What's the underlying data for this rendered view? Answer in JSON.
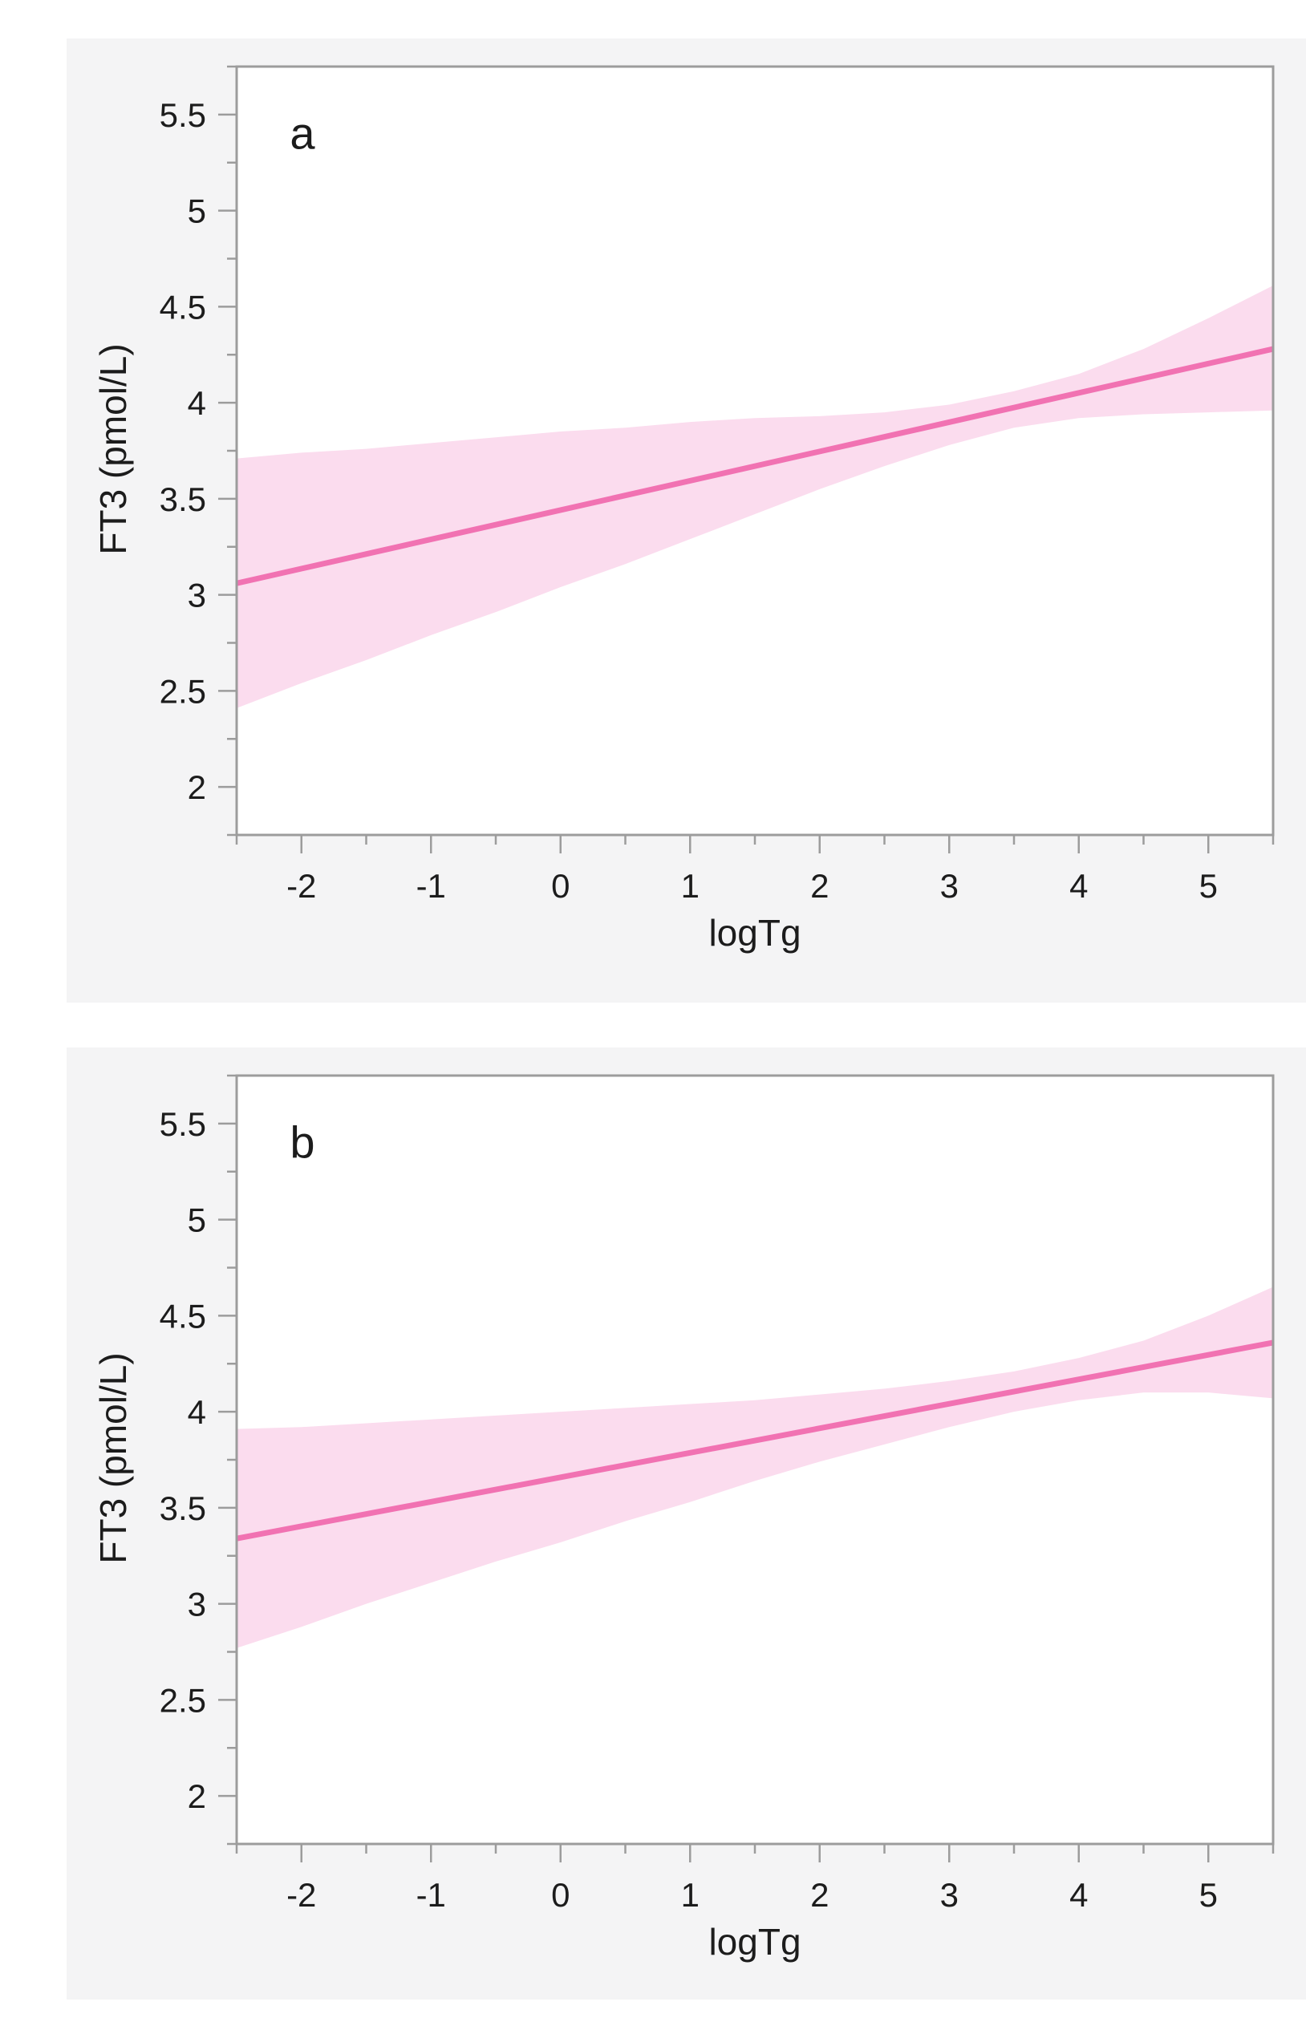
{
  "theme": {
    "page_bg": "#ffffff",
    "panel_bg": "#f4f4f5",
    "plot_bg": "#ffffff",
    "axis_color": "#9c9c9c",
    "text_color": "#1c1c1c",
    "tick_font_size": 42
  },
  "chart_data": [
    {
      "type": "line",
      "panel_letter": "a",
      "xlabel": "logTg",
      "ylabel": "FT3 (pmol/L)",
      "xlim": [
        -2.5,
        5.5
      ],
      "ylim": [
        1.75,
        5.75
      ],
      "x_major_ticks": [
        -2,
        -1,
        0,
        1,
        2,
        3,
        4,
        5
      ],
      "x_minor_ticks": [
        -2.5,
        -1.5,
        -0.5,
        0.5,
        1.5,
        2.5,
        3.5,
        4.5,
        5.5
      ],
      "y_major_ticks": [
        2,
        2.5,
        3,
        3.5,
        4,
        4.5,
        5,
        5.5
      ],
      "y_minor_ticks": [
        1.75,
        2.25,
        2.75,
        3.25,
        3.75,
        4.25,
        4.75,
        5.25,
        5.75
      ],
      "grid": false,
      "legend": "none",
      "series": [
        {
          "name": "confidence-band",
          "kind": "band",
          "color": "#fbdcee",
          "points": [
            [
              -2.5,
              3.71,
              2.41
            ],
            [
              -2.0,
              3.74,
              2.54
            ],
            [
              -1.5,
              3.76,
              2.66
            ],
            [
              -1.0,
              3.79,
              2.79
            ],
            [
              -0.5,
              3.82,
              2.91
            ],
            [
              0.0,
              3.85,
              3.04
            ],
            [
              0.5,
              3.87,
              3.16
            ],
            [
              1.0,
              3.9,
              3.29
            ],
            [
              1.5,
              3.92,
              3.42
            ],
            [
              2.0,
              3.93,
              3.55
            ],
            [
              2.5,
              3.95,
              3.67
            ],
            [
              3.0,
              3.99,
              3.78
            ],
            [
              3.5,
              4.06,
              3.87
            ],
            [
              4.0,
              4.15,
              3.92
            ],
            [
              4.5,
              4.28,
              3.94
            ],
            [
              5.0,
              4.44,
              3.95
            ],
            [
              5.5,
              4.61,
              3.96
            ]
          ]
        },
        {
          "name": "fit-line",
          "kind": "line",
          "color": "#f172b2",
          "width": 7,
          "points": [
            [
              -2.5,
              3.06
            ],
            [
              5.5,
              4.28
            ]
          ]
        }
      ]
    },
    {
      "type": "line",
      "panel_letter": "b",
      "xlabel": "logTg",
      "ylabel": "FT3 (pmol/L)",
      "xlim": [
        -2.5,
        5.5
      ],
      "ylim": [
        1.75,
        5.75
      ],
      "x_major_ticks": [
        -2,
        -1,
        0,
        1,
        2,
        3,
        4,
        5
      ],
      "x_minor_ticks": [
        -2.5,
        -1.5,
        -0.5,
        0.5,
        1.5,
        2.5,
        3.5,
        4.5,
        5.5
      ],
      "y_major_ticks": [
        2,
        2.5,
        3,
        3.5,
        4,
        4.5,
        5,
        5.5
      ],
      "y_minor_ticks": [
        1.75,
        2.25,
        2.75,
        3.25,
        3.75,
        4.25,
        4.75,
        5.25,
        5.75
      ],
      "grid": false,
      "legend": "none",
      "series": [
        {
          "name": "confidence-band",
          "kind": "band",
          "color": "#fbdcee",
          "points": [
            [
              -2.5,
              3.91,
              2.77
            ],
            [
              -2.0,
              3.92,
              2.88
            ],
            [
              -1.5,
              3.94,
              3.0
            ],
            [
              -1.0,
              3.96,
              3.11
            ],
            [
              -0.5,
              3.98,
              3.22
            ],
            [
              0.0,
              4.0,
              3.32
            ],
            [
              0.5,
              4.02,
              3.43
            ],
            [
              1.0,
              4.04,
              3.53
            ],
            [
              1.5,
              4.06,
              3.64
            ],
            [
              2.0,
              4.09,
              3.74
            ],
            [
              2.5,
              4.12,
              3.83
            ],
            [
              3.0,
              4.16,
              3.92
            ],
            [
              3.5,
              4.21,
              4.0
            ],
            [
              4.0,
              4.28,
              4.06
            ],
            [
              4.5,
              4.37,
              4.1
            ],
            [
              5.0,
              4.5,
              4.1
            ],
            [
              5.5,
              4.65,
              4.07
            ]
          ]
        },
        {
          "name": "fit-line",
          "kind": "line",
          "color": "#f172b2",
          "width": 7,
          "points": [
            [
              -2.5,
              3.34
            ],
            [
              5.5,
              4.36
            ]
          ]
        }
      ]
    }
  ]
}
